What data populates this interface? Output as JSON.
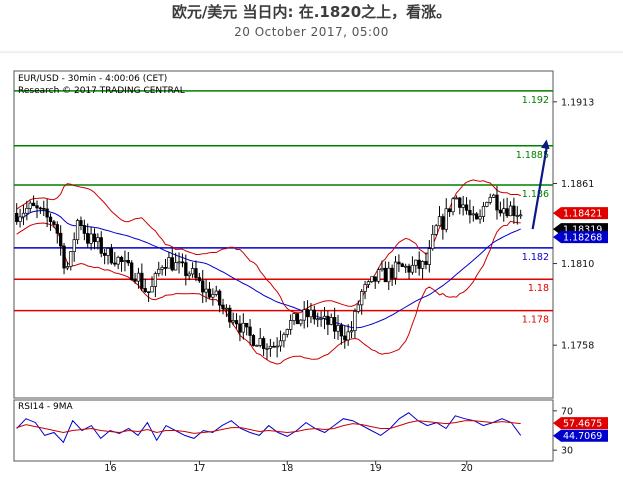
{
  "header": {
    "title": "欧元/美元 当日内: 在.1820之上，看涨。",
    "date": "20 October 2017, 05:00"
  },
  "chart_data": [
    {
      "type": "candlestick",
      "symbol_line": "EUR/USD - 30min - 4:00:06 (CET)",
      "copyright": "Research © 2017 TRADING CENTRAL",
      "ylim": [
        1.1725,
        1.1932
      ],
      "y_ticks": [
        1.1913,
        1.1861,
        1.181,
        1.1758
      ],
      "y_tick_labels": [
        "1.1913",
        "1.1861",
        "1.1810",
        "1.1758"
      ],
      "x_ticks": [
        {
          "label": "16",
          "at": 0.179
        },
        {
          "label": "17",
          "at": 0.344
        },
        {
          "label": "18",
          "at": 0.507
        },
        {
          "label": "19",
          "at": 0.671
        },
        {
          "label": "20",
          "at": 0.84
        }
      ],
      "levels": [
        {
          "value": 1.192,
          "label": "1.192",
          "color": "#008000"
        },
        {
          "value": 1.1885,
          "label": "1.1885",
          "color": "#008000"
        },
        {
          "value": 1.186,
          "label": "1.186",
          "color": "#008000"
        },
        {
          "value": 1.182,
          "label": "1.182",
          "color": "#0000cc"
        },
        {
          "value": 1.18,
          "label": "1.18",
          "color": "#e00000"
        },
        {
          "value": 1.178,
          "label": "1.178",
          "color": "#e00000"
        }
      ],
      "price_tags": [
        {
          "value": 1.18421,
          "label": "1.18421",
          "bg": "#e00000",
          "fg": "#ffffff"
        },
        {
          "value": 1.18319,
          "label": "1.18319",
          "bg": "#000000",
          "fg": "#ffffff"
        },
        {
          "value": 1.18268,
          "label": "1.18268",
          "bg": "#0000cc",
          "fg": "#ffffff"
        }
      ],
      "forecast_arrow": {
        "from": 1.1832,
        "to": 1.1889,
        "color": "#0a1a80"
      },
      "overlay_colors": {
        "bollinger": "#cc0000",
        "moving_average": "#0000cc"
      },
      "anchors": [
        [
          0,
          1.1842
        ],
        [
          0.03,
          1.1845
        ],
        [
          0.07,
          1.1838
        ],
        [
          0.1,
          1.1808
        ],
        [
          0.12,
          1.1838
        ],
        [
          0.14,
          1.1825
        ],
        [
          0.18,
          1.1815
        ],
        [
          0.22,
          1.1805
        ],
        [
          0.25,
          1.1792
        ],
        [
          0.28,
          1.1812
        ],
        [
          0.32,
          1.1805
        ],
        [
          0.36,
          1.1792
        ],
        [
          0.4,
          1.1778
        ],
        [
          0.44,
          1.1763
        ],
        [
          0.48,
          1.1758
        ],
        [
          0.51,
          1.1772
        ],
        [
          0.55,
          1.1777
        ],
        [
          0.58,
          1.1772
        ],
        [
          0.6,
          1.1768
        ],
        [
          0.62,
          1.1765
        ],
        [
          0.65,
          1.1793
        ],
        [
          0.68,
          1.1802
        ],
        [
          0.72,
          1.1807
        ],
        [
          0.76,
          1.1808
        ],
        [
          0.79,
          1.1835
        ],
        [
          0.82,
          1.1852
        ],
        [
          0.86,
          1.1835
        ],
        [
          0.88,
          1.1854
        ],
        [
          0.91,
          1.1846
        ],
        [
          0.94,
          1.1843
        ]
      ],
      "candle_count": 150
    },
    {
      "type": "line",
      "indicator": "RSI14 - 9MA",
      "ylim": [
        20,
        80
      ],
      "y_ticks": [
        70,
        30
      ],
      "y_tick_labels": [
        "70",
        "30"
      ],
      "value_tags": [
        {
          "value": 57.4675,
          "label": "57.4675",
          "bg": "#e00000",
          "fg": "#ffffff"
        },
        {
          "value": 44.7069,
          "label": "44.7069",
          "bg": "#0000cc",
          "fg": "#ffffff"
        }
      ],
      "series": [
        {
          "values": [
            52,
            62,
            58,
            45,
            48,
            38,
            60,
            50,
            55,
            42,
            50,
            47,
            52,
            45,
            58,
            40,
            55,
            50,
            45,
            42,
            50,
            48,
            55,
            60,
            52,
            48,
            45,
            55,
            48,
            44,
            50,
            58,
            52,
            48,
            55,
            62,
            60,
            55,
            50,
            45,
            52,
            62,
            68,
            60,
            55,
            58,
            52,
            65,
            62,
            60,
            55,
            58,
            62,
            58,
            45
          ],
          "color": "#0000cc"
        },
        {
          "values": [
            53,
            56,
            54,
            52,
            50,
            48,
            50,
            51,
            52,
            50,
            49,
            48,
            50,
            49,
            51,
            48,
            50,
            50,
            49,
            47,
            48,
            49,
            51,
            53,
            53,
            51,
            49,
            50,
            49,
            48,
            49,
            51,
            52,
            51,
            52,
            55,
            57,
            56,
            54,
            52,
            52,
            55,
            58,
            60,
            59,
            58,
            57,
            58,
            60,
            60,
            59,
            58,
            59,
            58,
            57
          ],
          "color": "#cc0000"
        }
      ]
    }
  ]
}
